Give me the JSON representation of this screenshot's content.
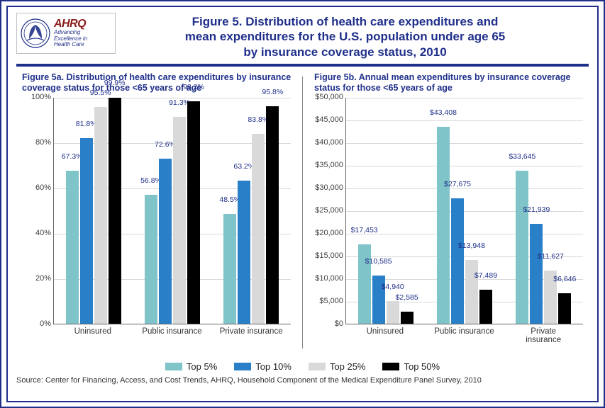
{
  "colors": {
    "frame": "#1f2f8a",
    "title": "#1f2f8a",
    "grid": "#d8d8d8",
    "axis": "#666666"
  },
  "logo": {
    "ahrq_text": "AHRQ",
    "tagline_1": "Advancing",
    "tagline_2": "Excellence in",
    "tagline_3": "Health Care"
  },
  "main_title_l1": "Figure 5. Distribution of health care expenditures and",
  "main_title_l2": "mean expenditures for the U.S. population under age 65",
  "main_title_l3": "by insurance coverage status, 2010",
  "legend": [
    {
      "label": "Top 5%",
      "color": "#7fc4c9"
    },
    {
      "label": "Top 10%",
      "color": "#2a7fc9"
    },
    {
      "label": "Top 25%",
      "color": "#d9d9d9"
    },
    {
      "label": "Top 50%",
      "color": "#000000"
    }
  ],
  "chart_a": {
    "subtitle": "Figure 5a. Distribution of health care expenditures by insurance coverage status for those <65 years of age",
    "ymax": 100,
    "yticks": [
      "0%",
      "20%",
      "40%",
      "60%",
      "80%",
      "100%"
    ],
    "categories": [
      "Uninsured",
      "Public insurance",
      "Private insurance"
    ],
    "series_colors": [
      "#7fc4c9",
      "#2a7fc9",
      "#d9d9d9",
      "#000000"
    ],
    "data": [
      {
        "values": [
          67.3,
          81.8,
          95.5,
          99.9
        ],
        "labels": [
          "67.3%",
          "81.8%",
          "95.5%",
          "99.9%"
        ]
      },
      {
        "values": [
          56.8,
          72.6,
          91.3,
          98.2
        ],
        "labels": [
          "56.8%",
          "72.6%",
          "91.3%",
          "98.2%"
        ]
      },
      {
        "values": [
          48.5,
          63.2,
          83.8,
          95.8
        ],
        "labels": [
          "48.5%",
          "63.2%",
          "83.8%",
          "95.8%"
        ]
      }
    ]
  },
  "chart_b": {
    "subtitle": "Figure 5b. Annual mean expenditures by insurance coverage status for those <65 years of age",
    "ymax": 50000,
    "yticks": [
      "$0",
      "$5,000",
      "$10,000",
      "$15,000",
      "$20,000",
      "$25,000",
      "$30,000",
      "$35,000",
      "$40,000",
      "$45,000",
      "$50,000"
    ],
    "categories": [
      "Uninsured",
      "Public insurance",
      "Private insurance"
    ],
    "series_colors": [
      "#7fc4c9",
      "#2a7fc9",
      "#d9d9d9",
      "#000000"
    ],
    "data": [
      {
        "values": [
          17453,
          10585,
          4940,
          2585
        ],
        "labels": [
          "$17,453",
          "$10,585",
          "$4,940",
          "$2,585"
        ]
      },
      {
        "values": [
          43408,
          27675,
          13948,
          7489
        ],
        "labels": [
          "$43,408",
          "$27,675",
          "$13,948",
          "$7,489"
        ]
      },
      {
        "values": [
          33645,
          21939,
          11627,
          6646
        ],
        "labels": [
          "$33,645",
          "$21,939",
          "$11,627",
          "$6,646"
        ]
      }
    ]
  },
  "source": "Source: Center for Financing, Access, and Cost Trends, AHRQ, Household Component of the Medical Expenditure Panel Survey, 2010"
}
